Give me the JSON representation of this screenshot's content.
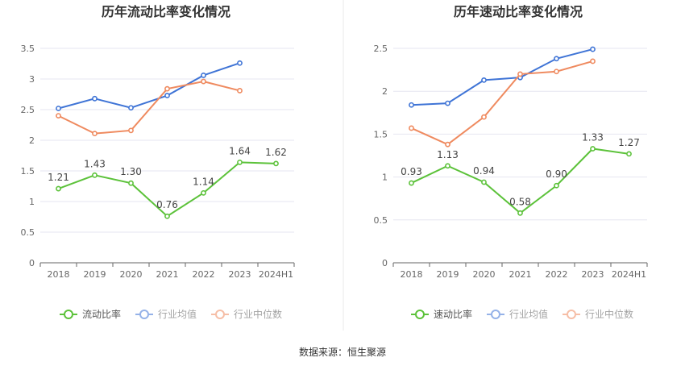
{
  "colors": {
    "main": "#5cc23a",
    "avg": "#3f74d6",
    "median": "#ef8a5f",
    "divider": "#e8e8e8"
  },
  "source_text": "数据来源：恒生聚源",
  "chart_data": [
    {
      "type": "line",
      "title": "历年流动比率变化情况",
      "categories": [
        "2018",
        "2019",
        "2020",
        "2021",
        "2022",
        "2023",
        "2024H1"
      ],
      "ylim": [
        0,
        3.5
      ],
      "yticks": [
        "0",
        "0.5",
        "1",
        "1.5",
        "2",
        "2.5",
        "3",
        "3.5"
      ],
      "grid": true,
      "legend_position": "bottom",
      "series": [
        {
          "name": "流动比率",
          "key": "main",
          "values": [
            1.21,
            1.43,
            1.3,
            0.76,
            1.14,
            1.64,
            1.62
          ],
          "labels": [
            "1.21",
            "1.43",
            "1.30",
            "0.76",
            "1.14",
            "1.64",
            "1.62"
          ]
        },
        {
          "name": "行业均值",
          "key": "avg",
          "values": [
            2.52,
            2.68,
            2.53,
            2.73,
            3.06,
            3.26,
            null
          ]
        },
        {
          "name": "行业中位数",
          "key": "median",
          "values": [
            2.4,
            2.11,
            2.16,
            2.84,
            2.96,
            2.81,
            null
          ]
        }
      ]
    },
    {
      "type": "line",
      "title": "历年速动比率变化情况",
      "categories": [
        "2018",
        "2019",
        "2020",
        "2021",
        "2022",
        "2023",
        "2024H1"
      ],
      "ylim": [
        0,
        2.5
      ],
      "yticks": [
        "0",
        "0.5",
        "1",
        "1.5",
        "2",
        "2.5"
      ],
      "grid": true,
      "legend_position": "bottom",
      "series": [
        {
          "name": "速动比率",
          "key": "main",
          "values": [
            0.93,
            1.13,
            0.94,
            0.58,
            0.9,
            1.33,
            1.27
          ],
          "labels": [
            "0.93",
            "1.13",
            "0.94",
            "0.58",
            "0.90",
            "1.33",
            "1.27"
          ]
        },
        {
          "name": "行业均值",
          "key": "avg",
          "values": [
            1.84,
            1.86,
            2.13,
            2.16,
            2.38,
            2.49,
            null
          ]
        },
        {
          "name": "行业中位数",
          "key": "median",
          "values": [
            1.57,
            1.38,
            1.7,
            2.2,
            2.23,
            2.35,
            null
          ]
        }
      ]
    }
  ]
}
